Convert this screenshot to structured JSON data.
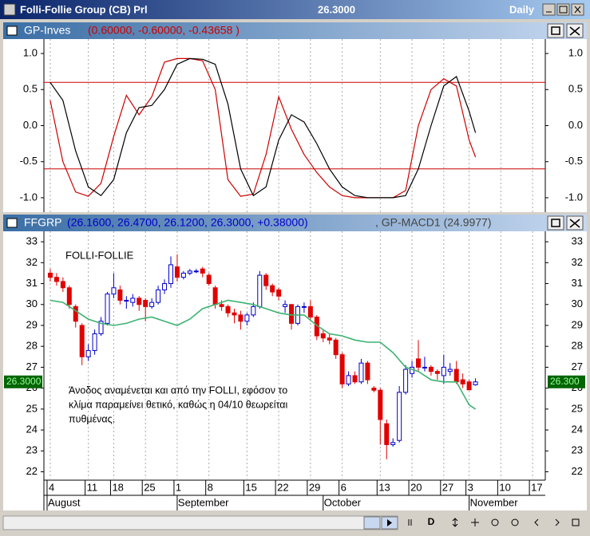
{
  "window": {
    "title": "Folli-Follie Group (CB) Prl",
    "price": "26.3000",
    "period": "Daily"
  },
  "toolbar": {
    "date_button": "D"
  },
  "chart_data": [
    {
      "type": "line",
      "title": "GP-Inves",
      "subtitle": "(0.60000, -0.60000, -0.43658 )",
      "levels": [
        0.6,
        -0.6
      ],
      "level_color": "#cc0000",
      "x": [
        0,
        2,
        4,
        6,
        8,
        10,
        12,
        14,
        16,
        18,
        20,
        22,
        24,
        26,
        28,
        30,
        32,
        34,
        36,
        38,
        40,
        42,
        44,
        46,
        48,
        50,
        52,
        54,
        56,
        58,
        60,
        62,
        64,
        66,
        67
      ],
      "series": [
        {
          "color": "#cc0000",
          "values": [
            0.35,
            -0.5,
            -0.92,
            -0.98,
            -0.8,
            -0.15,
            0.42,
            0.15,
            0.4,
            0.88,
            0.93,
            0.93,
            0.9,
            0.5,
            -0.75,
            -0.98,
            -0.95,
            -0.4,
            0.4,
            -0.05,
            -0.4,
            -0.65,
            -0.85,
            -0.97,
            -1.0,
            -1.0,
            -1.0,
            -1.0,
            -0.9,
            0.0,
            0.5,
            0.65,
            0.55,
            -0.2,
            -0.43658
          ]
        },
        {
          "color": "#000000",
          "values": [
            0.6,
            0.35,
            -0.35,
            -0.85,
            -0.97,
            -0.75,
            -0.1,
            0.25,
            0.28,
            0.5,
            0.85,
            0.93,
            0.92,
            0.85,
            0.3,
            -0.6,
            -0.97,
            -0.85,
            -0.2,
            0.15,
            0.05,
            -0.25,
            -0.6,
            -0.85,
            -0.97,
            -1.0,
            -1.0,
            -1.0,
            -0.97,
            -0.6,
            0.0,
            0.55,
            0.68,
            0.2,
            -0.1
          ]
        }
      ],
      "xlim": [
        -1,
        78
      ],
      "ylim": [
        -1.2,
        1.2
      ],
      "yticks": [
        {
          "value": 1,
          "label": "1.0"
        },
        {
          "value": 0.5,
          "label": "0.5"
        },
        {
          "value": 0,
          "label": "0.0"
        },
        {
          "value": -0.5,
          "label": "-0.5"
        },
        {
          "value": -1,
          "label": "-1.0"
        }
      ]
    },
    {
      "type": "candlestick",
      "title": "FFGRP",
      "subtitle": "(26.1600, 26.4700, 26.1200, 26.3000, +0.38000)",
      "indicator_label": ", GP-MACD1 (24.9977)",
      "annotation_title": "FOLLI-FOLLIE",
      "annotation": [
        "Άνοδος αναμένεται και από την FOLLI, εφόσον το",
        "κλίμα παραμείνει θετικό, καθώς η 04/10 θεωρείται",
        "πυθμένας."
      ],
      "last_price_left": "26.3000",
      "last_price_right": "26.300",
      "up_color": "#0000cc",
      "down_color": "#e00000",
      "x": [
        0,
        1,
        2,
        3,
        4,
        5,
        6,
        7,
        8,
        9,
        10,
        11,
        12,
        13,
        14,
        15,
        16,
        17,
        18,
        19,
        20,
        21,
        22,
        23,
        24,
        25,
        26,
        27,
        28,
        29,
        30,
        31,
        32,
        33,
        34,
        35,
        36,
        37,
        38,
        39,
        40,
        41,
        42,
        43,
        44,
        45,
        46,
        47,
        48,
        49,
        50,
        51,
        52,
        53,
        54,
        55,
        56,
        57,
        58,
        59,
        60,
        61,
        62,
        63,
        64,
        65,
        66,
        67
      ],
      "open": [
        31.5,
        31.3,
        31.1,
        30.8,
        29.9,
        29.0,
        27.5,
        27.8,
        28.6,
        29.1,
        30.5,
        30.7,
        30.2,
        30.1,
        30.3,
        30.2,
        29.9,
        30.1,
        30.7,
        31.0,
        31.8,
        31.3,
        31.5,
        31.6,
        31.7,
        31.4,
        30.8,
        30.0,
        29.9,
        29.6,
        29.5,
        29.2,
        29.5,
        29.9,
        31.4,
        30.9,
        30.7,
        29.9,
        30.0,
        29.1,
        29.9,
        29.9,
        29.4,
        28.6,
        28.4,
        28.3,
        27.6,
        26.2,
        26.6,
        26.3,
        27.2,
        26.0,
        25.9,
        24.3,
        23.3,
        23.5,
        25.8,
        26.7,
        27.4,
        27.0,
        27.0,
        26.8,
        26.6,
        26.8,
        26.9,
        26.4,
        26.3,
        26.16
      ],
      "high": [
        31.7,
        31.5,
        31.3,
        30.9,
        30.0,
        29.1,
        28.1,
        28.8,
        29.4,
        30.6,
        31.5,
        30.9,
        30.4,
        30.5,
        30.4,
        30.3,
        30.3,
        30.9,
        31.2,
        32.3,
        32.4,
        31.6,
        31.7,
        31.7,
        31.8,
        31.5,
        30.9,
        30.2,
        30.0,
        29.8,
        29.7,
        29.6,
        30.1,
        31.6,
        31.5,
        31.0,
        30.8,
        30.2,
        30.0,
        30.0,
        30.1,
        30.2,
        29.5,
        28.8,
        28.6,
        28.4,
        27.7,
        26.8,
        26.8,
        27.4,
        27.3,
        26.1,
        26.0,
        24.5,
        23.6,
        26.1,
        27.1,
        27.3,
        28.3,
        27.5,
        27.1,
        26.9,
        27.6,
        27.2,
        27.3,
        26.7,
        26.4,
        26.47
      ],
      "low": [
        31.1,
        30.9,
        30.6,
        29.8,
        28.9,
        27.1,
        27.3,
        27.6,
        28.5,
        29.0,
        30.3,
        30.0,
        29.8,
        29.9,
        29.7,
        29.2,
        29.8,
        30.0,
        30.5,
        30.8,
        31.1,
        31.2,
        31.4,
        31.5,
        31.3,
        30.9,
        29.8,
        29.7,
        29.4,
        29.1,
        28.8,
        29.0,
        29.4,
        29.8,
        30.7,
        30.4,
        30.2,
        29.6,
        28.8,
        29.0,
        29.6,
        29.2,
        28.3,
        28.2,
        28.1,
        27.4,
        26.0,
        26.1,
        26.2,
        26.2,
        26.2,
        25.8,
        23.3,
        22.6,
        23.2,
        23.4,
        25.7,
        26.5,
        26.8,
        26.8,
        26.6,
        26.4,
        26.2,
        26.6,
        26.2,
        26.0,
        25.9,
        26.12
      ],
      "close": [
        31.3,
        31.1,
        30.8,
        30.0,
        29.2,
        27.5,
        27.8,
        28.6,
        29.2,
        30.5,
        30.8,
        30.2,
        30.2,
        30.3,
        30.0,
        29.9,
        30.1,
        30.7,
        31.0,
        31.9,
        31.3,
        31.5,
        31.6,
        31.6,
        31.5,
        31.0,
        30.0,
        29.9,
        29.6,
        29.5,
        29.2,
        29.5,
        29.9,
        31.4,
        30.9,
        30.6,
        30.4,
        30.0,
        29.1,
        29.9,
        29.9,
        29.4,
        28.5,
        28.4,
        28.3,
        27.6,
        26.2,
        26.6,
        26.3,
        27.2,
        26.4,
        25.9,
        24.5,
        23.3,
        23.4,
        25.8,
        26.9,
        27.0,
        27.0,
        27.0,
        26.8,
        26.7,
        27.0,
        26.9,
        26.3,
        26.2,
        25.92,
        26.3
      ],
      "indicator": {
        "color": "#3cb371",
        "x": [
          0,
          2,
          4,
          6,
          8,
          10,
          12,
          14,
          16,
          18,
          20,
          22,
          24,
          26,
          28,
          30,
          32,
          34,
          36,
          38,
          40,
          42,
          44,
          46,
          48,
          50,
          52,
          54,
          56,
          58,
          60,
          62,
          64,
          66,
          67
        ],
        "values": [
          30.2,
          30.1,
          29.7,
          29.3,
          29.1,
          29.0,
          29.1,
          29.3,
          29.4,
          29.2,
          29.0,
          29.3,
          29.8,
          30.0,
          30.2,
          30.1,
          30.0,
          29.8,
          29.6,
          29.5,
          29.5,
          29.0,
          28.6,
          28.5,
          28.3,
          28.2,
          28.2,
          27.7,
          27.0,
          26.8,
          26.4,
          26.3,
          26.3,
          25.2,
          24.9977
        ]
      },
      "xlim": [
        -1,
        78
      ],
      "ylim": [
        21.6,
        33.5
      ],
      "yticks": [
        22,
        23,
        24,
        25,
        26,
        27,
        28,
        29,
        30,
        31,
        32,
        33
      ],
      "xticks": [
        {
          "value": 0,
          "label": "4"
        },
        {
          "value": 6,
          "label": "11"
        },
        {
          "value": 10,
          "label": "18"
        },
        {
          "value": 15,
          "label": "25"
        },
        {
          "value": 20,
          "label": "1"
        },
        {
          "value": 25,
          "label": "8"
        },
        {
          "value": 31,
          "label": "15"
        },
        {
          "value": 36,
          "label": "22"
        },
        {
          "value": 41,
          "label": "29"
        },
        {
          "value": 46,
          "label": "6"
        },
        {
          "value": 52,
          "label": "13"
        },
        {
          "value": 57,
          "label": "20"
        },
        {
          "value": 62,
          "label": "27"
        },
        {
          "value": 66,
          "label": "3"
        },
        {
          "value": 71,
          "label": "10"
        },
        {
          "value": 76,
          "label": "17"
        }
      ],
      "month_ticks": [
        {
          "value": -0.5,
          "label": "August"
        },
        {
          "value": 20,
          "label": "September"
        },
        {
          "value": 43,
          "label": "October"
        },
        {
          "value": 66,
          "label": "November"
        }
      ]
    }
  ]
}
